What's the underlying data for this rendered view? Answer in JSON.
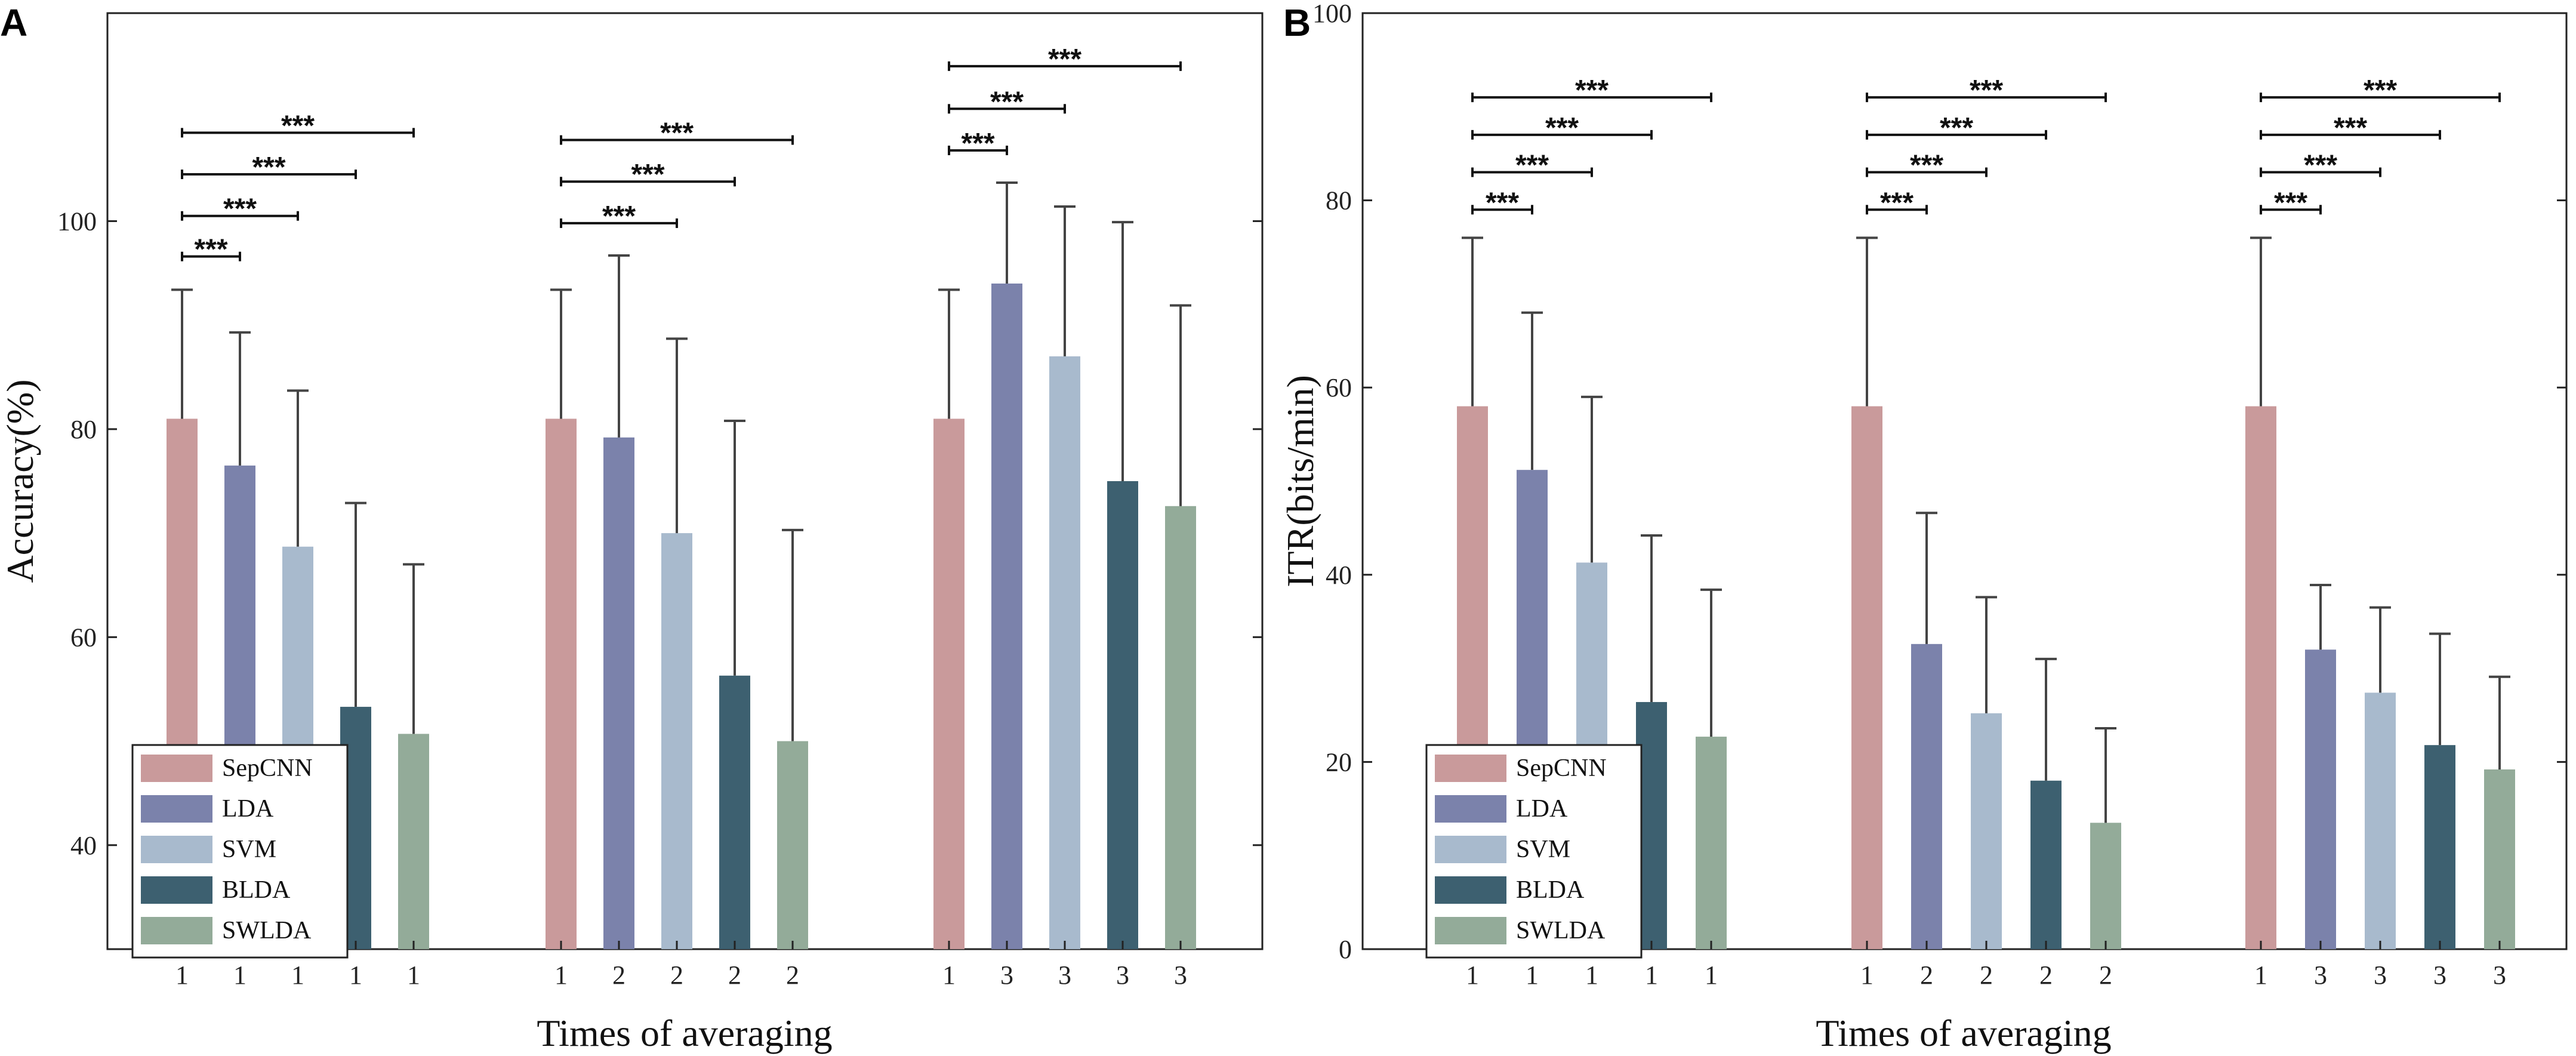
{
  "chart_data": [
    {
      "type": "bar",
      "panel_label": "A",
      "title": "",
      "xlabel": "Times of averaging",
      "ylabel": "Accuracy(%)",
      "ylim": [
        30,
        120
      ],
      "yticks": [
        40,
        60,
        80,
        100
      ],
      "groups": [
        {
          "tick_labels": [
            "1",
            "1",
            "1",
            "1",
            "1"
          ],
          "values": [
            81,
            76.5,
            68.7,
            53.3,
            50.7
          ],
          "errors": [
            12.4,
            12.8,
            15.0,
            19.6,
            16.3
          ]
        },
        {
          "tick_labels": [
            "1",
            "2",
            "2",
            "2",
            "2"
          ],
          "values": [
            81,
            79.2,
            70.0,
            56.3,
            50.0
          ],
          "errors": [
            12.4,
            17.5,
            18.7,
            24.5,
            20.3
          ]
        },
        {
          "tick_labels": [
            "1",
            "3",
            "3",
            "3",
            "3"
          ],
          "values": [
            81,
            94.0,
            87.0,
            75.0,
            72.6
          ],
          "errors": [
            12.4,
            9.7,
            14.4,
            24.9,
            19.3
          ]
        }
      ],
      "significance": [
        {
          "group": 0,
          "to": 1,
          "y": 96.6,
          "label": "***"
        },
        {
          "group": 0,
          "to": 2,
          "y": 100.5,
          "label": "***"
        },
        {
          "group": 0,
          "to": 3,
          "y": 104.5,
          "label": "***"
        },
        {
          "group": 0,
          "to": 4,
          "y": 108.5,
          "label": "***"
        },
        {
          "group": 1,
          "to": 2,
          "y": 99.8,
          "label": "***"
        },
        {
          "group": 1,
          "to": 3,
          "y": 103.8,
          "label": "***"
        },
        {
          "group": 1,
          "to": 4,
          "y": 107.8,
          "label": "***"
        },
        {
          "group": 2,
          "to": 1,
          "y": 106.8,
          "label": "***"
        },
        {
          "group": 2,
          "to": 2,
          "y": 110.8,
          "label": "***"
        },
        {
          "group": 2,
          "to": 4,
          "y": 114.9,
          "label": "***"
        }
      ],
      "legend_position": "bottom-left"
    },
    {
      "type": "bar",
      "panel_label": "B",
      "title": "",
      "xlabel": "Times of averaging",
      "ylabel": "ITR(bits/min)",
      "ylim": [
        0,
        100
      ],
      "yticks": [
        0,
        20,
        40,
        60,
        80,
        100
      ],
      "groups": [
        {
          "tick_labels": [
            "1",
            "1",
            "1",
            "1",
            "1"
          ],
          "values": [
            58,
            51.2,
            41.3,
            26.4,
            22.7
          ],
          "errors": [
            18,
            16.8,
            17.7,
            17.8,
            15.7
          ]
        },
        {
          "tick_labels": [
            "1",
            "2",
            "2",
            "2",
            "2"
          ],
          "values": [
            58,
            32.6,
            25.2,
            18.0,
            13.5
          ],
          "errors": [
            18,
            14.0,
            12.4,
            13.0,
            10.1
          ]
        },
        {
          "tick_labels": [
            "1",
            "3",
            "3",
            "3",
            "3"
          ],
          "values": [
            58,
            32.0,
            27.4,
            21.8,
            19.2
          ],
          "errors": [
            18,
            6.9,
            9.1,
            11.9,
            9.9
          ]
        }
      ],
      "significance": [
        {
          "group": 0,
          "to": 1,
          "y": 79,
          "label": "***"
        },
        {
          "group": 0,
          "to": 2,
          "y": 83,
          "label": "***"
        },
        {
          "group": 0,
          "to": 3,
          "y": 87,
          "label": "***"
        },
        {
          "group": 0,
          "to": 4,
          "y": 91,
          "label": "***"
        },
        {
          "group": 1,
          "to": 1,
          "y": 79,
          "label": "***"
        },
        {
          "group": 1,
          "to": 2,
          "y": 83,
          "label": "***"
        },
        {
          "group": 1,
          "to": 3,
          "y": 87,
          "label": "***"
        },
        {
          "group": 1,
          "to": 4,
          "y": 91,
          "label": "***"
        },
        {
          "group": 2,
          "to": 1,
          "y": 79,
          "label": "***"
        },
        {
          "group": 2,
          "to": 2,
          "y": 83,
          "label": "***"
        },
        {
          "group": 2,
          "to": 3,
          "y": 87,
          "label": "***"
        },
        {
          "group": 2,
          "to": 4,
          "y": 91,
          "label": "***"
        }
      ],
      "legend_position": "bottom-left"
    }
  ],
  "series": [
    {
      "name": "SepCNN",
      "color": "#C99A9B"
    },
    {
      "name": "LDA",
      "color": "#7B82AB"
    },
    {
      "name": "SVM",
      "color": "#A8BACD"
    },
    {
      "name": "BLDA",
      "color": "#3D6070"
    },
    {
      "name": "SWLDA",
      "color": "#93AB99"
    }
  ]
}
